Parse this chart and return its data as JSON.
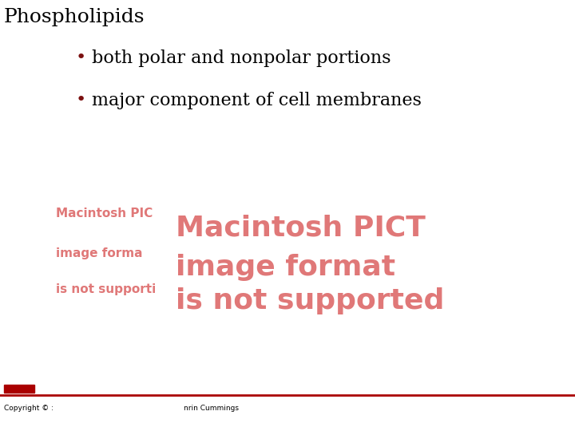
{
  "title": "Phospholipids",
  "bullet1": "both polar and nonpolar portions",
  "bullet2": "major component of cell membranes",
  "pict_lines_small": [
    "Macintosh PIC",
    "image forma",
    "is not supporti"
  ],
  "pict_lines_large": [
    "Macintosh PICT",
    "image format",
    "is not supported"
  ],
  "title_color": "#000000",
  "title_fontsize": 18,
  "bullet_color": "#000000",
  "bullet_fontsize": 16,
  "bullet_marker_color": "#7B1010",
  "pict_color_small": "#E07878",
  "pict_color_large": "#E07878",
  "footer_text_left": "Copyright © :",
  "footer_text_right": "nrin Cummings",
  "footer_color": "#000000",
  "footer_line_color": "#AA0000",
  "bg_color": "#FFFFFF",
  "small_fontsize": 11,
  "large_fontsize": 26
}
